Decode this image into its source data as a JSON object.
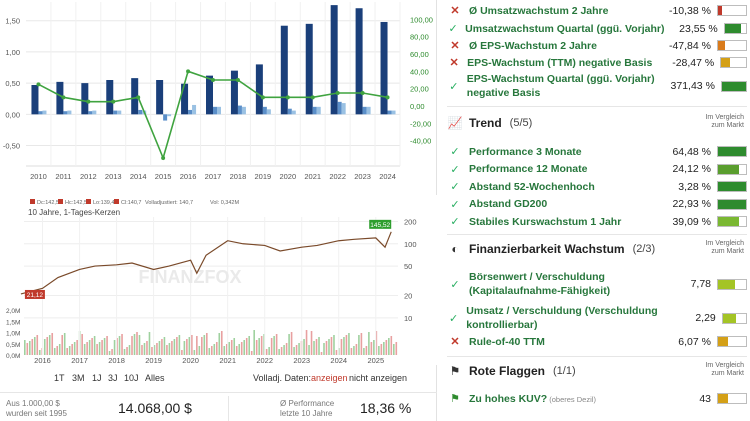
{
  "bar_chart": {
    "chart_data": {
      "type": "bar",
      "categories": [
        "2010",
        "2011",
        "2012",
        "2013",
        "2014",
        "2015",
        "2016",
        "2017",
        "2018",
        "2019",
        "2020",
        "2021",
        "2022",
        "2023",
        "2024"
      ],
      "series": [
        {
          "values": [
            0.47,
            0.52,
            0.5,
            0.55,
            0.58,
            0.55,
            0.49,
            0.62,
            0.7,
            0.8,
            1.42,
            1.45,
            1.75,
            1.7,
            1.48
          ]
        },
        {
          "values": [
            0.05,
            0.05,
            0.05,
            0.06,
            0.07,
            -0.1,
            0.07,
            0.12,
            0.14,
            0.12,
            0.09,
            0.12,
            0.2,
            0.12,
            0.06
          ]
        },
        {
          "values": [
            0.06,
            0.06,
            0.06,
            0.06,
            0.06,
            -0.03,
            0.15,
            0.12,
            0.12,
            0.08,
            0.06,
            0.12,
            0.18,
            0.12,
            0.06
          ]
        },
        {
          "type": "line",
          "axis": "right",
          "values": [
            25,
            10,
            5,
            5,
            10,
            -60,
            40,
            30,
            30,
            10,
            10,
            10,
            15,
            15,
            10
          ]
        }
      ],
      "yticks": [
        "1,50",
        "1,00",
        "0,50",
        "0,00",
        "-0,50"
      ],
      "yticks_right": [
        "100,00",
        "80,00",
        "60,00",
        "40,00",
        "20,00",
        "0,00",
        "-20,00",
        "-40,00"
      ]
    }
  },
  "stock_chart": {
    "legend": [
      "Dc:142,5",
      "Hc:142,5",
      "Lo:139,4",
      "Cl:140,7"
    ],
    "ma_label": "Volladjustiert: 140,7",
    "vol_label": "Vol: 0,342M",
    "subtitle": "10 Jahre, 1-Tages-Kerzen",
    "price_tag": "145,52",
    "low_tag": "21,12",
    "watermark": "FINANZFOX",
    "yticks_right": [
      "200",
      "100",
      "50",
      "20",
      "10"
    ],
    "vol_ticks": [
      "2,0M",
      "1,5M",
      "1,0M",
      "0,5M",
      "0,0M"
    ],
    "xticks": [
      "2016",
      "2017",
      "2018",
      "2019",
      "2020",
      "2021",
      "2022",
      "2023",
      "2024",
      "2025"
    ],
    "chart_data": {
      "type": "line",
      "x": [
        "2015-06",
        "2016-01",
        "2016-06",
        "2017-01",
        "2017-06",
        "2018-01",
        "2018-06",
        "2019-01",
        "2019-06",
        "2020-01",
        "2020-03",
        "2020-06",
        "2021-01",
        "2021-06",
        "2022-01",
        "2022-06",
        "2023-01",
        "2023-06",
        "2024-01",
        "2024-06",
        "2025-01",
        "2025-04",
        "2025-06"
      ],
      "y": [
        21,
        25,
        35,
        45,
        50,
        52,
        55,
        45,
        50,
        60,
        40,
        70,
        110,
        100,
        95,
        80,
        90,
        95,
        110,
        115,
        120,
        90,
        145
      ]
    }
  },
  "period_tabs": [
    "1T",
    "3M",
    "1J",
    "3J",
    "10J",
    "Alles"
  ],
  "volladj": {
    "label": "Volladj. Daten:",
    "on": "anzeigen",
    "off": "nicht anzeigen"
  },
  "summary": {
    "invest_label1": "Aus 1.000,00 $",
    "invest_label2": "wurden seit 1995",
    "invest_value": "14.068,00 $",
    "perf_label1": "Ø Performance",
    "perf_label2": "letzte 10 Jahre",
    "perf_value": "18,36 %"
  },
  "growth_rows": [
    {
      "label": "Ø Umsatzwachstum 2 Jahre",
      "value": "-10,38 %",
      "status": "fail",
      "fill": 0.15,
      "color": "#c0392b"
    },
    {
      "label": "Umsatzwachstum Quartal (ggü. Vorjahr)",
      "value": "23,55 %",
      "status": "pass",
      "fill": 0.75,
      "color": "#2e8b2e"
    },
    {
      "label": "Ø EPS-Wachstum 2 Jahre",
      "value": "-47,84 %",
      "status": "fail",
      "fill": 0.25,
      "color": "#d97b1c"
    },
    {
      "label": "EPS-Wachstum (TTM) negative Basis",
      "value": "-28,47 %",
      "status": "fail",
      "fill": 0.35,
      "color": "#d4a017"
    },
    {
      "label": "EPS-Wachstum Quartal (ggü. Vorjahr)",
      "label2": "negative Basis",
      "value": "371,43 %",
      "status": "pass",
      "fill": 1.0,
      "color": "#2e8b2e"
    }
  ],
  "trend": {
    "title": "Trend",
    "count": "(5/5)",
    "compare": "Im Vergleich zum Markt",
    "rows": [
      {
        "label": "Performance 3 Monate",
        "value": "64,48 %",
        "status": "pass",
        "fill": 1.0,
        "color": "#2e8b2e"
      },
      {
        "label": "Performance 12 Monate",
        "value": "24,12 %",
        "status": "pass",
        "fill": 0.75,
        "color": "#5a9e2e"
      },
      {
        "label": "Abstand 52-Wochenhoch",
        "value": "3,28 %",
        "status": "pass",
        "fill": 1.0,
        "color": "#2e8b2e"
      },
      {
        "label": "Abstand GD200",
        "value": "22,93 %",
        "status": "pass",
        "fill": 1.0,
        "color": "#2e8b2e"
      },
      {
        "label": "Stabiles Kurswachstum 1 Jahr",
        "value": "39,09 %",
        "status": "pass",
        "fill": 0.75,
        "color": "#7ab832"
      }
    ]
  },
  "financing": {
    "title": "Finanzierbarkeit Wachstum",
    "count": "(2/3)",
    "compare": "Im Vergleich zum Markt",
    "rows": [
      {
        "label": "Börsenwert / Verschuldung",
        "label2": "(Kapitalaufnahme-Fähigkeit)",
        "value": "7,78",
        "status": "pass",
        "fill": 0.6,
        "color": "#a4c425"
      },
      {
        "label": "Umsatz / Verschuldung (Verschuldung",
        "label2": "kontrollierbar)",
        "value": "2,29",
        "status": "pass",
        "fill": 0.55,
        "color": "#a4c425"
      },
      {
        "label": "Rule-of-40 TTM",
        "value": "6,07 %",
        "status": "fail",
        "fill": 0.35,
        "color": "#d4a017"
      }
    ]
  },
  "red_flags": {
    "title": "Rote Flaggen",
    "count": "(1/1)",
    "compare": "Im Vergleich zum Markt",
    "rows": [
      {
        "label": "Zu hohes KUV?",
        "sub": "(oberes Dezil)",
        "value": "43",
        "status": "flag",
        "fill": 0.35,
        "color": "#d4a017"
      }
    ]
  }
}
